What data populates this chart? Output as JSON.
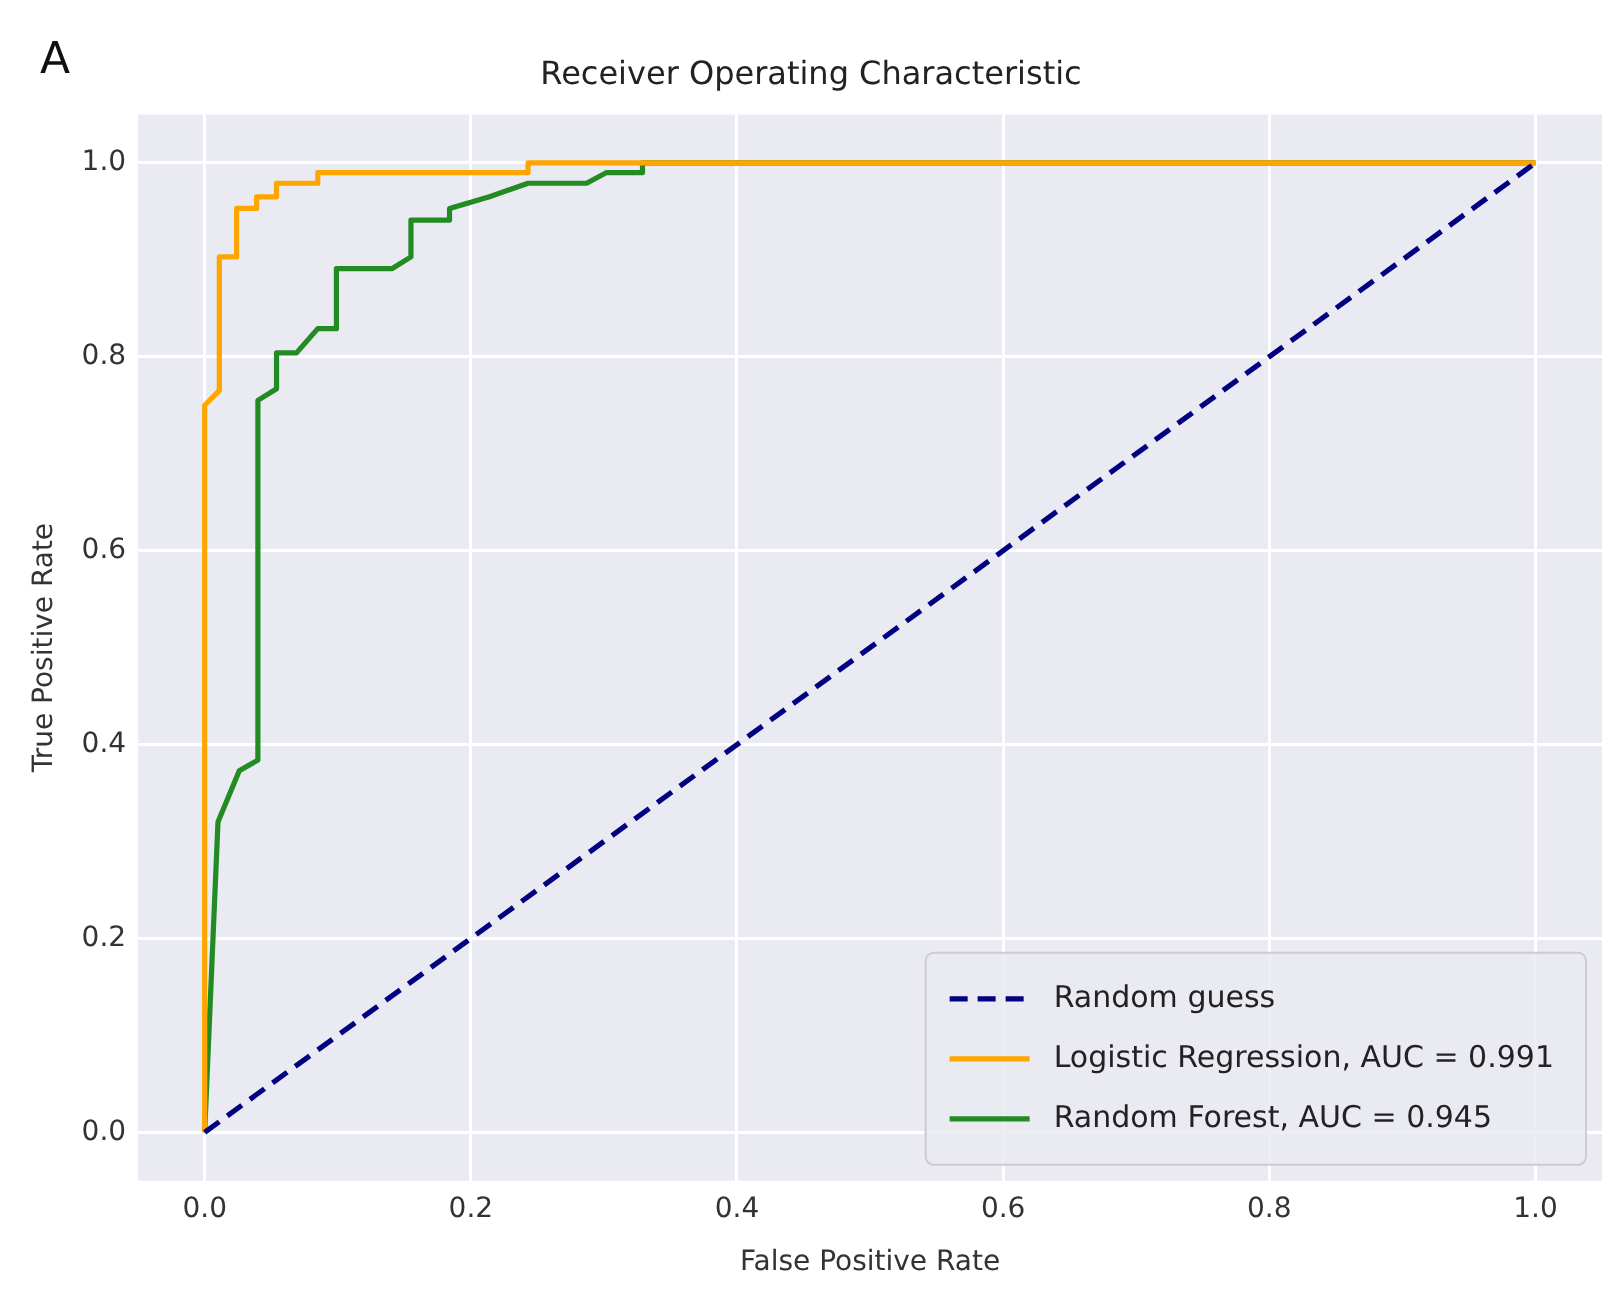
{
  "chart_data": {
    "type": "line",
    "title": "Receiver Operating Characteristic",
    "xlabel": "False Positive Rate",
    "ylabel": "True Positive Rate",
    "annotations": [
      "A"
    ],
    "xlim": [
      -0.05,
      1.05
    ],
    "ylim": [
      -0.05,
      1.05
    ],
    "xticks": [
      {
        "value": 0,
        "label": "0.0"
      },
      {
        "value": 0.2,
        "label": "0.2"
      },
      {
        "value": 0.4,
        "label": "0.4"
      },
      {
        "value": 0.6,
        "label": "0.6"
      },
      {
        "value": 0.8,
        "label": "0.8"
      },
      {
        "value": 1,
        "label": "1.0"
      }
    ],
    "yticks": [
      {
        "value": 0,
        "label": "0.0"
      },
      {
        "value": 0.2,
        "label": "0.2"
      },
      {
        "value": 0.4,
        "label": "0.4"
      },
      {
        "value": 0.6,
        "label": "0.6"
      },
      {
        "value": 0.8,
        "label": "0.8"
      },
      {
        "value": 1,
        "label": "1.0"
      }
    ],
    "grid": true,
    "legend": "bottom right",
    "marker": "none",
    "series": [
      {
        "name": "Random guess",
        "color": "#000080",
        "line_style": "dashed",
        "x": [
          0,
          1
        ],
        "values": [
          0,
          1
        ]
      },
      {
        "name": "Logistic Regression, AUC = 0.991",
        "color": "#ffa500",
        "x": [
          0,
          0,
          0.011,
          0.011,
          0.024,
          0.024,
          0.039,
          0.039,
          0.054,
          0.054,
          0.085,
          0.085,
          0.243,
          0.243,
          1
        ],
        "values": [
          0,
          0.75,
          0.765,
          0.903,
          0.903,
          0.953,
          0.953,
          0.965,
          0.965,
          0.979,
          0.979,
          0.99,
          0.99,
          1,
          1
        ]
      },
      {
        "name": "Random Forest, AUC = 0.945",
        "color": "#228b22",
        "x": [
          0,
          0.01,
          0.026,
          0.04,
          0.04,
          0.054,
          0.054,
          0.069,
          0.085,
          0.099,
          0.099,
          0.141,
          0.155,
          0.155,
          0.184,
          0.184,
          0.214,
          0.243,
          0.287,
          0.302,
          0.329,
          0.329,
          1
        ],
        "values": [
          0,
          0.32,
          0.373,
          0.384,
          0.755,
          0.767,
          0.804,
          0.804,
          0.829,
          0.829,
          0.891,
          0.891,
          0.903,
          0.941,
          0.941,
          0.953,
          0.965,
          0.979,
          0.979,
          0.99,
          0.99,
          1,
          1
        ]
      }
    ]
  }
}
